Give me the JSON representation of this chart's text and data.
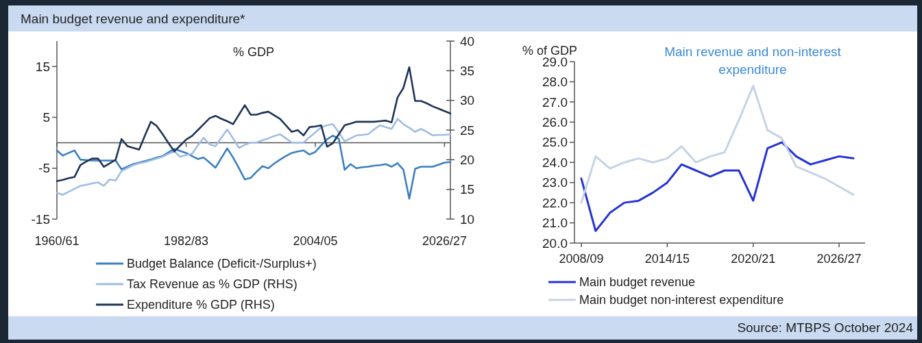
{
  "chart_data": [
    {
      "type": "line",
      "title": "Main budget revenue and expenditure*",
      "ylabel": "% GDP",
      "categories": [
        "1960/61",
        null,
        null,
        null,
        null,
        null,
        null,
        null,
        null,
        null,
        null,
        null,
        null,
        null,
        null,
        null,
        null,
        null,
        null,
        null,
        null,
        null,
        "1982/83",
        null,
        null,
        null,
        null,
        null,
        null,
        null,
        null,
        null,
        null,
        null,
        null,
        null,
        null,
        null,
        null,
        null,
        null,
        null,
        null,
        null,
        "2004/05",
        null,
        null,
        null,
        null,
        null,
        null,
        null,
        null,
        null,
        null,
        null,
        null,
        null,
        null,
        null,
        null,
        null,
        null,
        null,
        null,
        null,
        "2026/27",
        null
      ],
      "ylim": [
        -15,
        20
      ],
      "yticks": [
        -15,
        -5,
        5,
        15
      ],
      "y2lim": [
        10,
        40
      ],
      "y2ticks": [
        10,
        15,
        20,
        25,
        30,
        35,
        40
      ],
      "legend": "bottom",
      "series": [
        {
          "name": "Budget Balance (Deficit-/Surplus+)",
          "color": "#3a7fc1",
          "values": [
            -1.5,
            -2.5,
            -2.0,
            -1.5,
            -3.3,
            -3.4,
            -3.5,
            -3.5,
            -3.5,
            -3.5,
            -3.5,
            -5.2,
            -4.7,
            -4.2,
            -3.9,
            -3.6,
            -3.3,
            -2.9,
            -2.6,
            -1.9,
            -1.2,
            -1.6,
            -2.0,
            -2.6,
            -3.2,
            -2.9,
            -3.9,
            -4.9,
            -3.0,
            -1.1,
            -2.9,
            -5.0,
            -7.2,
            -6.9,
            -5.7,
            -4.6,
            -5.0,
            -4.1,
            -3.3,
            -2.6,
            -2.0,
            -1.7,
            -1.5,
            -2.3,
            -1.8,
            -0.5,
            0.7,
            1.4,
            0.8,
            -5.3,
            -4.2,
            -5.0,
            -4.8,
            -4.7,
            -4.5,
            -4.4,
            -4.2,
            -4.7,
            -4.0,
            -5.3,
            -11.0,
            -5.1,
            -4.7,
            -4.7,
            -4.7,
            -4.3,
            -3.9,
            -3.8
          ]
        },
        {
          "name": "Tax Revenue as % GDP (RHS)",
          "color": "#9fbde3",
          "axis": "y2",
          "values": [
            14.4,
            14.1,
            14.6,
            15.1,
            15.6,
            15.8,
            16.0,
            16.2,
            15.6,
            16.7,
            16.5,
            18.1,
            18.6,
            19.1,
            19.4,
            19.6,
            19.9,
            20.2,
            20.5,
            21.0,
            21.4,
            20.5,
            20.8,
            21.0,
            22.4,
            23.7,
            22.6,
            22.3,
            23.7,
            25.1,
            23.6,
            22.0,
            22.5,
            22.9,
            22.9,
            23.3,
            23.6,
            24.0,
            24.3,
            23.6,
            22.9,
            22.9,
            22.9,
            23.8,
            24.6,
            25.5,
            25.8,
            26.0,
            24.6,
            23.1,
            23.6,
            24.1,
            24.2,
            24.3,
            25.1,
            25.8,
            25.5,
            25.2,
            26.9,
            26.0,
            25.4,
            24.7,
            25.2,
            24.7,
            24.1,
            24.2,
            24.2,
            24.3
          ]
        },
        {
          "name": "Expenditure % GDP (RHS)",
          "color": "#1e3454",
          "axis": "y2",
          "values": [
            16.4,
            16.6,
            16.9,
            17.1,
            19.1,
            19.7,
            20.2,
            20.2,
            18.8,
            19.4,
            20.0,
            23.5,
            22.3,
            22.0,
            21.7,
            24.1,
            26.4,
            25.7,
            24.3,
            22.8,
            21.4,
            22.4,
            23.4,
            24.0,
            25.0,
            26.0,
            27.0,
            27.4,
            26.9,
            26.5,
            26.0,
            27.6,
            29.2,
            27.6,
            27.6,
            27.9,
            28.1,
            27.5,
            26.9,
            25.8,
            24.7,
            25.0,
            24.1,
            25.5,
            25.6,
            25.8,
            22.2,
            22.8,
            24.3,
            25.8,
            26.1,
            26.4,
            26.4,
            26.4,
            26.4,
            26.5,
            26.6,
            26.3,
            30.5,
            32.1,
            35.6,
            29.9,
            29.9,
            29.5,
            29.0,
            28.6,
            28.2,
            27.8
          ]
        }
      ]
    },
    {
      "type": "line",
      "title": "Main revenue and non-interest expenditure",
      "ylabel": "% of GDP",
      "categories": [
        "2008/09",
        null,
        null,
        null,
        null,
        null,
        "2014/15",
        null,
        null,
        null,
        null,
        null,
        "2020/21",
        null,
        null,
        null,
        null,
        null,
        "2026/27",
        null
      ],
      "ylim": [
        20,
        29
      ],
      "yticks": [
        {
          "value": 20,
          "label": "20.0"
        },
        {
          "value": 21,
          "label": "21.0"
        },
        {
          "value": 22,
          "label": "22.0"
        },
        {
          "value": 23,
          "label": "23.0"
        },
        {
          "value": 24,
          "label": "24.0"
        },
        {
          "value": 25,
          "label": "25.0"
        },
        {
          "value": 26,
          "label": "26.0"
        },
        {
          "value": 27,
          "label": "27.0"
        },
        {
          "value": 28,
          "label": "28.0"
        },
        {
          "value": 29,
          "label": "29.0"
        }
      ],
      "legend": "bottom",
      "annotations": [
        "Source: MTBPS October 2024"
      ],
      "series": [
        {
          "name": "Main budget revenue",
          "color": "#2433d4",
          "values": [
            23.2,
            20.6,
            21.5,
            22.0,
            22.1,
            22.5,
            23.0,
            23.9,
            23.6,
            23.3,
            23.6,
            23.6,
            22.1,
            24.7,
            25.0,
            24.3,
            23.9,
            24.1,
            24.3,
            24.2
          ]
        },
        {
          "name": "Main budget non-interest expenditure",
          "color": "#c5d3e4",
          "values": [
            22.0,
            24.3,
            23.7,
            24.0,
            24.2,
            24.0,
            24.2,
            24.8,
            24.0,
            24.3,
            24.5,
            26.1,
            27.8,
            25.6,
            25.2,
            23.8,
            23.5,
            23.2,
            22.8,
            22.4
          ]
        }
      ]
    }
  ]
}
